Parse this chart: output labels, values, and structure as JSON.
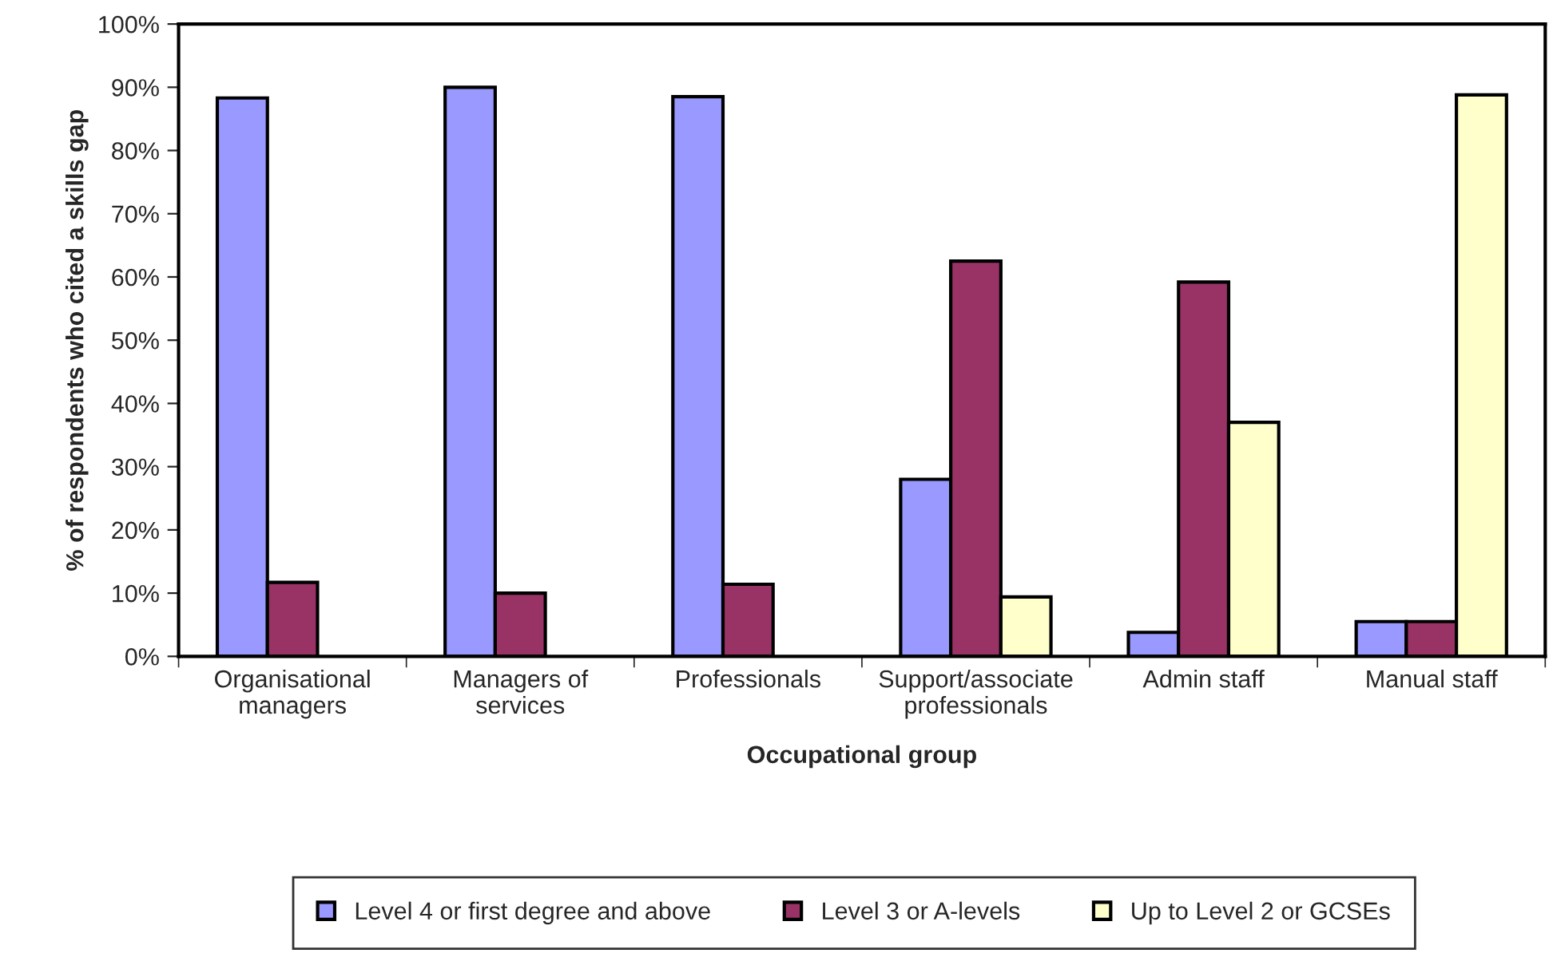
{
  "chart_data": {
    "type": "bar",
    "xlabel": "Occupational group",
    "ylabel": "% of respondents who cited a skills gap",
    "categories": [
      "Organisational\nmanagers",
      "Managers of\nservices",
      "Professionals",
      "Support/associate\nprofessionals",
      "Admin staff",
      "Manual staff"
    ],
    "series": [
      {
        "name": "Level 4 or first degree and above",
        "color": "#9999ff",
        "values": [
          88.3,
          90,
          88.5,
          28,
          3.8,
          5.5
        ]
      },
      {
        "name": "Level 3 or A-levels",
        "color": "#993366",
        "values": [
          11.7,
          10,
          11.4,
          62.5,
          59.2,
          5.5
        ]
      },
      {
        "name": "Up to Level 2 or GCSEs",
        "color": "#ffffcc",
        "values": [
          null,
          null,
          null,
          9.4,
          37,
          88.8
        ]
      }
    ],
    "ylim": [
      0,
      100
    ],
    "yticks": [
      {
        "value": 0,
        "label": "0%"
      },
      {
        "value": 10,
        "label": "10%"
      },
      {
        "value": 20,
        "label": "20%"
      },
      {
        "value": 30,
        "label": "30%"
      },
      {
        "value": 40,
        "label": "40%"
      },
      {
        "value": 50,
        "label": "50%"
      },
      {
        "value": 60,
        "label": "60%"
      },
      {
        "value": 70,
        "label": "70%"
      },
      {
        "value": 80,
        "label": "80%"
      },
      {
        "value": 90,
        "label": "90%"
      },
      {
        "value": 100,
        "label": "100%"
      }
    ],
    "grid": false,
    "legend": "bottom"
  }
}
